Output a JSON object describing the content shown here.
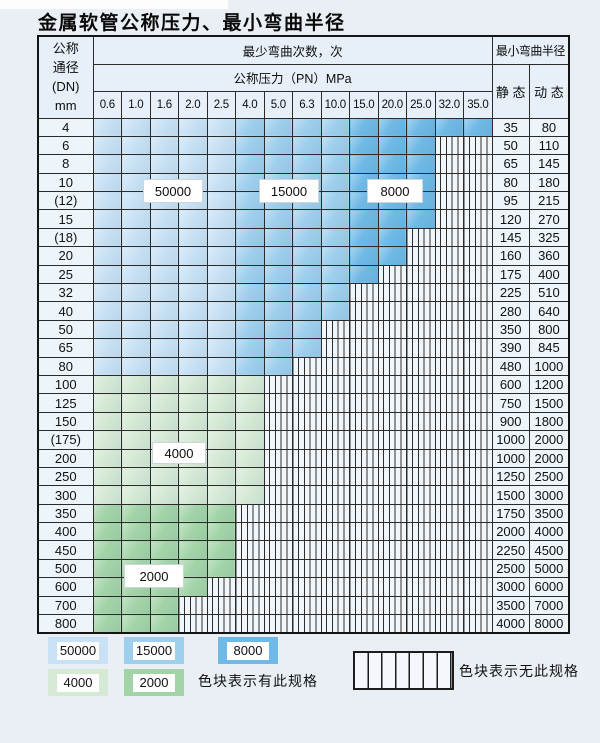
{
  "title": "金属软管公称压力、最小弯曲半径",
  "table": {
    "colors": {
      "blue_50000": "#c8e1f4",
      "blue_15000": "#9ecfed",
      "blue_8000": "#6fb9e6",
      "green_4000": "#d5e9d5",
      "green_2000": "#a3d4a8",
      "no_spec_bg": "#f1f6fb",
      "grid_line": "#2b2b2b"
    },
    "header": {
      "dn_lines": [
        "公称",
        "通径",
        "(DN)",
        "mm"
      ],
      "bend_cycles_label": "最少弯曲次数，次",
      "pressure_label": "公称压力（PN）MPa",
      "pressure_columns": [
        "0.6",
        "1.0",
        "1.6",
        "2.0",
        "2.5",
        "4.0",
        "5.0",
        "6.3",
        "10.0",
        "15.0",
        "20.0",
        "25.0",
        "32.0",
        "35.0"
      ],
      "radius_label": "最小弯曲半径",
      "static_label": "静 态",
      "dynamic_label": "动 态"
    },
    "rows": [
      {
        "dn": "4",
        "palette": "blue",
        "colored_through": "35.0",
        "static": "35",
        "dynamic": "80"
      },
      {
        "dn": "6",
        "palette": "blue",
        "colored_through": "25.0",
        "static": "50",
        "dynamic": "110"
      },
      {
        "dn": "8",
        "palette": "blue",
        "colored_through": "25.0",
        "static": "65",
        "dynamic": "145"
      },
      {
        "dn": "10",
        "palette": "blue",
        "colored_through": "25.0",
        "static": "80",
        "dynamic": "180"
      },
      {
        "dn": "(12)",
        "palette": "blue",
        "colored_through": "25.0",
        "static": "95",
        "dynamic": "215"
      },
      {
        "dn": "15",
        "palette": "blue",
        "colored_through": "25.0",
        "static": "120",
        "dynamic": "270"
      },
      {
        "dn": "(18)",
        "palette": "blue",
        "colored_through": "20.0",
        "static": "145",
        "dynamic": "325"
      },
      {
        "dn": "20",
        "palette": "blue",
        "colored_through": "20.0",
        "static": "160",
        "dynamic": "360"
      },
      {
        "dn": "25",
        "palette": "blue",
        "colored_through": "15.0",
        "static": "175",
        "dynamic": "400"
      },
      {
        "dn": "32",
        "palette": "blue",
        "colored_through": "10.0",
        "static": "225",
        "dynamic": "510"
      },
      {
        "dn": "40",
        "palette": "blue",
        "colored_through": "10.0",
        "static": "280",
        "dynamic": "640"
      },
      {
        "dn": "50",
        "palette": "blue",
        "colored_through": "6.3",
        "static": "350",
        "dynamic": "800"
      },
      {
        "dn": "65",
        "palette": "blue",
        "colored_through": "6.3",
        "static": "390",
        "dynamic": "845"
      },
      {
        "dn": "80",
        "palette": "blue",
        "colored_through": "5.0",
        "static": "480",
        "dynamic": "1000"
      },
      {
        "dn": "100",
        "palette": "green-light",
        "colored_through": "4.0",
        "static": "600",
        "dynamic": "1200"
      },
      {
        "dn": "125",
        "palette": "green-light",
        "colored_through": "4.0",
        "static": "750",
        "dynamic": "1500"
      },
      {
        "dn": "150",
        "palette": "green-light",
        "colored_through": "4.0",
        "static": "900",
        "dynamic": "1800"
      },
      {
        "dn": "(175)",
        "palette": "green-light",
        "colored_through": "4.0",
        "static": "1000",
        "dynamic": "2000"
      },
      {
        "dn": "200",
        "palette": "green-light",
        "colored_through": "4.0",
        "static": "1000",
        "dynamic": "2000"
      },
      {
        "dn": "250",
        "palette": "green-light",
        "colored_through": "4.0",
        "static": "1250",
        "dynamic": "2500"
      },
      {
        "dn": "300",
        "palette": "green-light",
        "colored_through": "4.0",
        "static": "1500",
        "dynamic": "3000"
      },
      {
        "dn": "350",
        "palette": "green-mid",
        "colored_through": "2.5",
        "static": "1750",
        "dynamic": "3500"
      },
      {
        "dn": "400",
        "palette": "green-mid",
        "colored_through": "2.5",
        "static": "2000",
        "dynamic": "4000"
      },
      {
        "dn": "450",
        "palette": "green-mid",
        "colored_through": "2.5",
        "static": "2250",
        "dynamic": "4500"
      },
      {
        "dn": "500",
        "palette": "green-mid",
        "colored_through": "2.5",
        "static": "2500",
        "dynamic": "5000"
      },
      {
        "dn": "600",
        "palette": "green-mid",
        "colored_through": "2.0",
        "static": "3000",
        "dynamic": "6000"
      },
      {
        "dn": "700",
        "palette": "green-mid",
        "colored_through": "1.6",
        "static": "3500",
        "dynamic": "7000"
      },
      {
        "dn": "800",
        "palette": "green-mid",
        "colored_through": "1.6",
        "static": "4000",
        "dynamic": "8000"
      }
    ]
  },
  "grid_labels": [
    "50000",
    "15000",
    "8000",
    "4000",
    "2000"
  ],
  "legend": {
    "items": [
      {
        "label": "50000",
        "color": "blue_50000"
      },
      {
        "label": "15000",
        "color": "blue_15000"
      },
      {
        "label": "8000",
        "color": "blue_8000"
      },
      {
        "label": "4000",
        "color": "green_4000"
      },
      {
        "label": "2000",
        "color": "green_2000"
      }
    ],
    "have_text": "色块表示有此规格",
    "not_have_text": "色块表示无此规格"
  }
}
